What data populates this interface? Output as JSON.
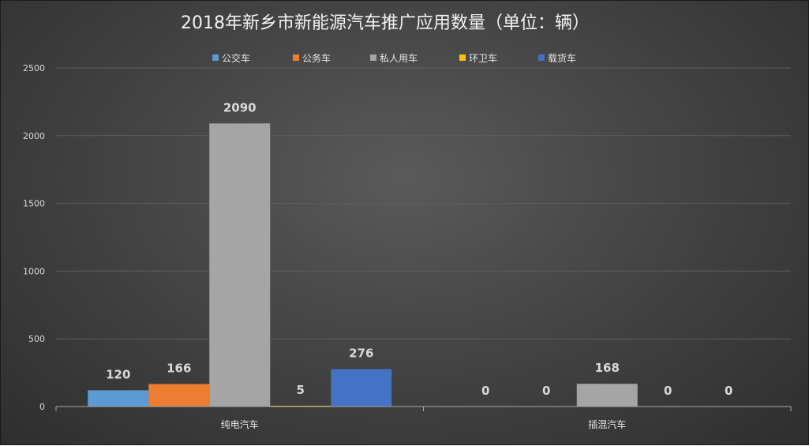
{
  "chart_data": {
    "type": "bar",
    "title": "2018年新乡市新能源汽车推广应用数量（单位：辆）",
    "categories": [
      "纯电汽车",
      "插混汽车"
    ],
    "series": [
      {
        "name": "公交车",
        "values": [
          120,
          0
        ],
        "color": "#5b9bd5"
      },
      {
        "name": "公务车",
        "values": [
          166,
          0
        ],
        "color": "#ed7d31"
      },
      {
        "name": "私人用车",
        "values": [
          2090,
          168
        ],
        "color": "#a5a5a5"
      },
      {
        "name": "环卫车",
        "values": [
          5,
          0
        ],
        "color": "#ffc000"
      },
      {
        "name": "载货车",
        "values": [
          276,
          0
        ],
        "color": "#4472c4"
      }
    ],
    "ylim": [
      0,
      2500
    ],
    "yticks": [
      0,
      500,
      1000,
      1500,
      2000,
      2500
    ],
    "grid": true,
    "legend": "top"
  }
}
